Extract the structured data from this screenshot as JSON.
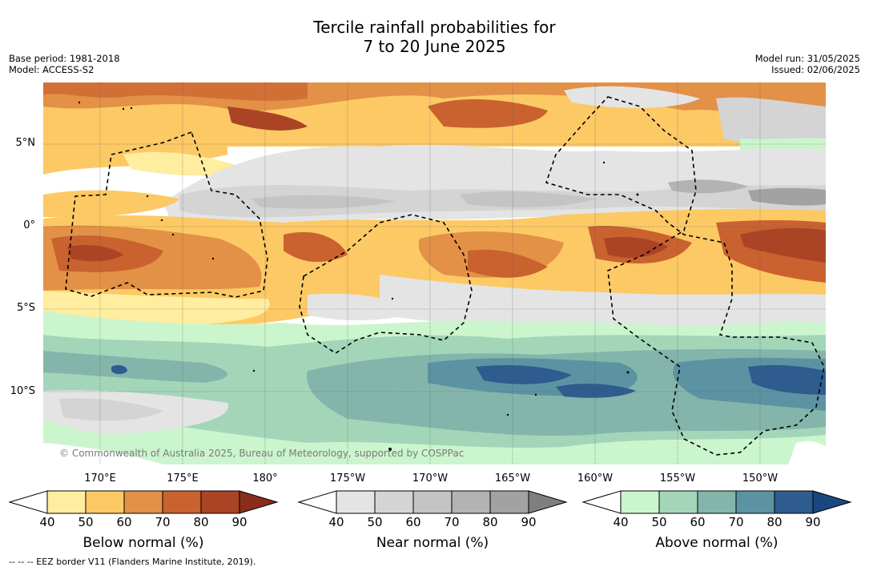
{
  "header": {
    "title_line1": "Tercile rainfall probabilities for",
    "title_line2": "7 to 20 June 2025",
    "base_period": "Base period: 1981-2018",
    "model": "Model: ACCESS-S2",
    "model_run": "Model run: 31/05/2025",
    "issued": "Issued: 02/06/2025"
  },
  "map": {
    "lat_labels": [
      "5°N",
      "0°",
      "5°S",
      "10°S"
    ],
    "lon_labels": [
      "170°E",
      "175°E",
      "180°",
      "175°W",
      "170°W",
      "165°W",
      "160°W",
      "155°W",
      "150°W"
    ],
    "copyright": "© Commonwealth of Australia 2025, Bureau of Meteorology, supported by COSPPac",
    "colors": {
      "below": [
        "#ffeda0",
        "#fdc965",
        "#e39147",
        "#c9622f",
        "#ab4424",
        "#8a2d1c"
      ],
      "near": [
        "#e4e4e4",
        "#d4d4d4",
        "#c4c4c4",
        "#b3b3b3",
        "#a2a2a2",
        "#7f7f7f"
      ],
      "above": [
        "#cbf5cd",
        "#a3d6b9",
        "#84b5ab",
        "#5c93a3",
        "#2f5c8e",
        "#1a4780"
      ]
    }
  },
  "colorbars": [
    {
      "name": "below",
      "title": "Below normal (%)",
      "ticks": [
        "40",
        "50",
        "60",
        "70",
        "80",
        "90"
      ]
    },
    {
      "name": "near",
      "title": "Near normal (%)",
      "ticks": [
        "40",
        "50",
        "60",
        "70",
        "80",
        "90"
      ]
    },
    {
      "name": "above",
      "title": "Above normal (%)",
      "ticks": [
        "40",
        "50",
        "60",
        "70",
        "80",
        "90"
      ]
    }
  ],
  "footnote": "--  --  -- EEZ border V11 (Flanders Marine Institute, 2019)."
}
